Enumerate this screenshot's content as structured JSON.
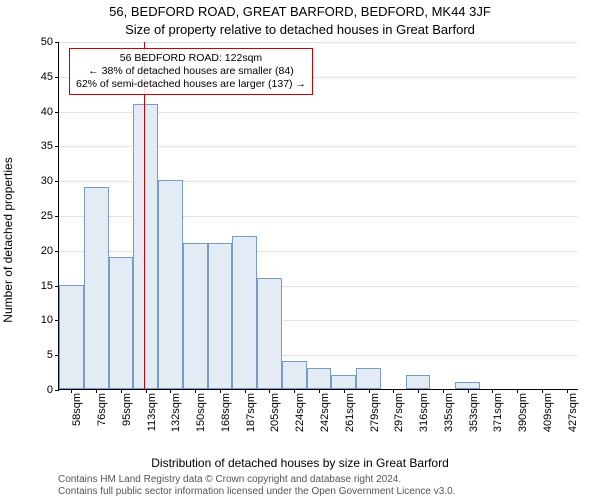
{
  "title_line1": "56, BEDFORD ROAD, GREAT BARFORD, BEDFORD, MK44 3JF",
  "title_line2": "Size of property relative to detached houses in Great Barford",
  "ylabel": "Number of detached properties",
  "xlabel": "Distribution of detached houses by size in Great Barford",
  "footer_line1": "Contains HM Land Registry data © Crown copyright and database right 2024.",
  "footer_line2": "Contains full public sector information licensed under the Open Government Licence v3.0.",
  "chart": {
    "type": "histogram",
    "ylim": [
      0,
      50
    ],
    "ytick_step": 5,
    "background_color": "#ffffff",
    "grid_color": "#cccccc",
    "bar_fill": "#e3ebf5",
    "bar_stroke": "#7a9bc5",
    "marker_color": "#cc0000",
    "marker_x_index": 3.45,
    "bins": [
      {
        "label": "58sqm",
        "count": 15
      },
      {
        "label": "76sqm",
        "count": 29
      },
      {
        "label": "95sqm",
        "count": 19
      },
      {
        "label": "113sqm",
        "count": 41
      },
      {
        "label": "132sqm",
        "count": 30
      },
      {
        "label": "150sqm",
        "count": 21
      },
      {
        "label": "168sqm",
        "count": 21
      },
      {
        "label": "187sqm",
        "count": 22
      },
      {
        "label": "205sqm",
        "count": 16
      },
      {
        "label": "224sqm",
        "count": 4
      },
      {
        "label": "242sqm",
        "count": 3
      },
      {
        "label": "261sqm",
        "count": 2
      },
      {
        "label": "279sqm",
        "count": 3
      },
      {
        "label": "297sqm",
        "count": 0
      },
      {
        "label": "316sqm",
        "count": 2
      },
      {
        "label": "335sqm",
        "count": 0
      },
      {
        "label": "353sqm",
        "count": 1
      },
      {
        "label": "371sqm",
        "count": 0
      },
      {
        "label": "390sqm",
        "count": 0
      },
      {
        "label": "409sqm",
        "count": 0
      },
      {
        "label": "427sqm",
        "count": 0
      }
    ],
    "annotation": {
      "line1": "56 BEDFORD ROAD: 122sqm",
      "line2": "← 38% of detached houses are smaller (84)",
      "line3": "62% of semi-detached houses are larger (137) →"
    }
  }
}
